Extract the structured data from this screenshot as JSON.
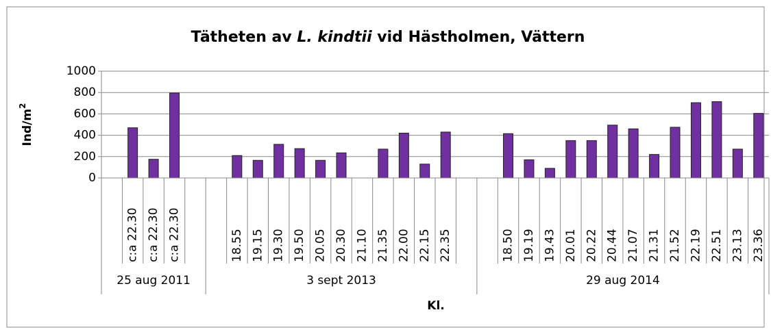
{
  "chart_data": {
    "type": "bar",
    "title": [
      "Tätheten av",
      "L. kindtii",
      "vid Hästholmen, Vättern"
    ],
    "y_label": [
      "Ind/m",
      "2"
    ],
    "x_label": "Kl.",
    "color": "#7030a0",
    "ylim": [
      0,
      1000
    ],
    "yticks": [
      0,
      200,
      400,
      600,
      800,
      1000
    ],
    "grid": true,
    "groups": [
      {
        "label": "25 aug 2011",
        "categories": [
          null,
          "c:a 22.30",
          "c:a 22.30",
          "c:a 22.30",
          null
        ],
        "values": [
          null,
          470,
          175,
          795,
          null
        ]
      },
      {
        "label": "3 sept 2013",
        "categories": [
          null,
          "18.55",
          "19.15",
          "19.30",
          "19.50",
          "20.05",
          "20.30",
          "21.10",
          "21.35",
          "22.00",
          "22.15",
          "22.35",
          null
        ],
        "values": [
          null,
          210,
          165,
          315,
          275,
          165,
          235,
          0,
          270,
          420,
          130,
          430,
          null
        ]
      },
      {
        "label": "29 aug 2014",
        "categories": [
          null,
          "18.50",
          "19.19",
          "19.43",
          "20.01",
          "20.22",
          "20.44",
          "21.07",
          "21.31",
          "21.52",
          "22.19",
          "22.51",
          "23.13",
          "23.36"
        ],
        "values": [
          null,
          415,
          170,
          90,
          350,
          350,
          495,
          460,
          220,
          475,
          705,
          715,
          270,
          605
        ]
      }
    ]
  }
}
